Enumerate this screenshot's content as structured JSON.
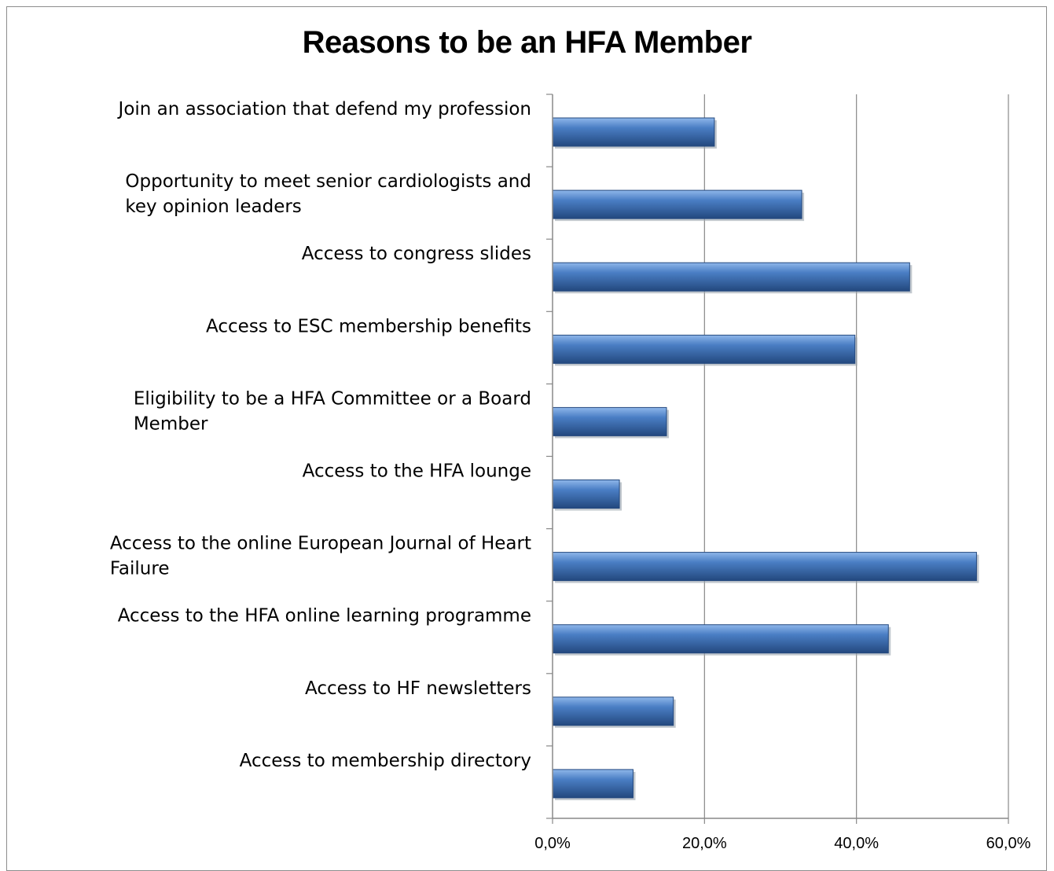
{
  "chart_data": {
    "type": "bar",
    "orientation": "horizontal",
    "title": "Reasons to be an HFA Member",
    "categories": [
      [
        "Join an association that defend my profession"
      ],
      [
        "Opportunity to meet senior cardiologists and",
        "key opinion leaders"
      ],
      [
        "Access to congress slides"
      ],
      [
        "Access to ESC membership benefits"
      ],
      [
        "Eligibility to be a HFA Committee or a Board",
        "Member"
      ],
      [
        "Access to the HFA lounge"
      ],
      [
        "Access to the online European Journal of Heart",
        "Failure"
      ],
      [
        "Access to the HFA online learning programme"
      ],
      [
        "Access to HF newsletters"
      ],
      [
        "Access to membership directory"
      ]
    ],
    "values": [
      21.3,
      32.8,
      47.0,
      39.8,
      15.0,
      8.8,
      55.8,
      44.2,
      15.9,
      10.6
    ],
    "xlim": [
      0,
      60
    ],
    "xticks": [
      "0,0%",
      "20,0%",
      "40,0%",
      "60,0%"
    ],
    "xtick_values": [
      0,
      20,
      40,
      60
    ],
    "grid": "vertical",
    "colors": {
      "bar": "#4a7ec4",
      "bar_light": "#8fb7ea",
      "bar_dark": "#23487e",
      "grid": "#888888"
    }
  }
}
